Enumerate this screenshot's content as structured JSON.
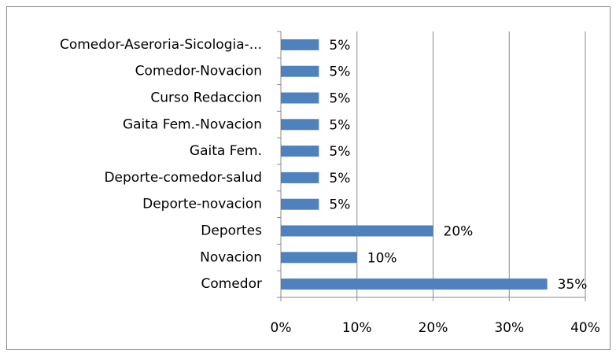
{
  "chart_data": {
    "type": "bar",
    "orientation": "horizontal",
    "categories": [
      "Comedor-Aseroria-Sicologia-...",
      "Comedor-Novacion",
      "Curso Redaccion",
      "Gaita Fem.-Novacion",
      "Gaita Fem.",
      "Deporte-comedor-salud",
      "Deporte-novacion",
      "Deportes",
      "Novacion",
      "Comedor"
    ],
    "values": [
      5,
      5,
      5,
      5,
      5,
      5,
      5,
      20,
      10,
      35
    ],
    "value_labels": [
      "5%",
      "5%",
      "5%",
      "5%",
      "5%",
      "5%",
      "5%",
      "20%",
      "10%",
      "35%"
    ],
    "color": "#4f81bd",
    "xlim": [
      0,
      40
    ],
    "xticks": [
      {
        "value": 0,
        "label": "0%"
      },
      {
        "value": 10,
        "label": "10%"
      },
      {
        "value": 20,
        "label": "20%"
      },
      {
        "value": 30,
        "label": "30%"
      },
      {
        "value": 40,
        "label": "40%"
      }
    ],
    "grid": true
  }
}
